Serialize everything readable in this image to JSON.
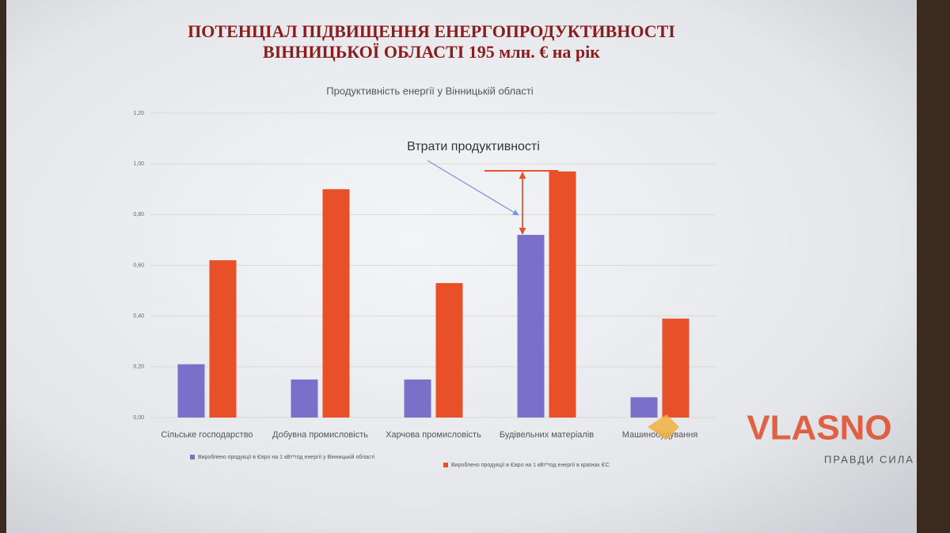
{
  "chart_data": {
    "type": "bar",
    "title_lines": [
      "ПОТЕНЦІАЛ  ПІДВИЩЕННЯ ЕНЕРГОПРОДУКТИВНОСТІ",
      "ВІННИЦЬКОЇ  ОБЛАСТІ 195 млн. € на рік"
    ],
    "subtitle": "Продуктивність енергії у Вінницькій області",
    "annotation": "Втрати продуктивності",
    "categories": [
      "Сільське господарство",
      "Добувна промисловість",
      "Харчова промисловість",
      "Будівельних матеріалів",
      "Машинобудування"
    ],
    "series": [
      {
        "name": "Вироблено продукції в Євро на 1 кВт*год енергії у Вінницькій області",
        "color": "#7b6fc9",
        "values": [
          0.21,
          0.15,
          0.15,
          0.72,
          0.08
        ]
      },
      {
        "name": "Вироблено продукції в Євро на 1 кВт*год енергії в країнах ЄС",
        "color": "#e8502a",
        "values": [
          0.62,
          0.9,
          0.53,
          0.97,
          0.39
        ]
      }
    ],
    "ylim": [
      0,
      1.2
    ],
    "yticks": [
      {
        "value": 0,
        "label": "0,00"
      },
      {
        "value": 0.2,
        "label": "0,20"
      },
      {
        "value": 0.4,
        "label": "0,40"
      },
      {
        "value": 0.6,
        "label": "0,60"
      },
      {
        "value": 0.8,
        "label": "0,80"
      },
      {
        "value": 1,
        "label": "1,00"
      },
      {
        "value": 1.2,
        "label": "1,20"
      }
    ],
    "grid": true,
    "legend": "bottom"
  },
  "watermark": {
    "brand": "VLASNO",
    "tagline": "ПРАВДИ СИЛА"
  }
}
